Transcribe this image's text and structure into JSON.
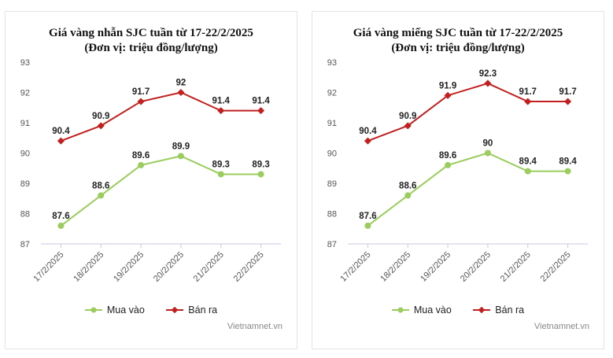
{
  "chart_data": [
    {
      "type": "line",
      "title": "Giá vàng nhẫn SJC tuần từ 17-22/2/2025",
      "subtitle": "(Đơn vị: triệu đồng/lượng)",
      "categories": [
        "17/2/2025",
        "18/2/2025",
        "19/2/2025",
        "20/2/2025",
        "21/2/2025",
        "22/2/2025"
      ],
      "series": [
        {
          "name": "Mua vào",
          "values": [
            87.6,
            88.6,
            89.6,
            89.9,
            89.3,
            89.3
          ],
          "color": "#9acd5e"
        },
        {
          "name": "Bán ra",
          "values": [
            90.4,
            90.9,
            91.7,
            92,
            91.4,
            91.4
          ],
          "color": "#c21f1f"
        }
      ],
      "ylim": [
        87,
        93
      ],
      "yticks": [
        87,
        88,
        89,
        90,
        91,
        92,
        93
      ],
      "grid": false,
      "legend": "bottom",
      "credit": "Vietnamnet.vn"
    },
    {
      "type": "line",
      "title": "Giá vàng miếng SJC tuần từ 17-22/2/2025",
      "subtitle": "(Đơn vị: triệu đồng/lượng)",
      "categories": [
        "17/2/2025",
        "18/2/2025",
        "19/2/2025",
        "20/2/2025",
        "21/2/2025",
        "22/2/2025"
      ],
      "series": [
        {
          "name": "Mua vào",
          "values": [
            87.6,
            88.6,
            89.6,
            90,
            89.4,
            89.4
          ],
          "color": "#9acd5e"
        },
        {
          "name": "Bán ra",
          "values": [
            90.4,
            90.9,
            91.9,
            92.3,
            91.7,
            91.7
          ],
          "color": "#c21f1f"
        }
      ],
      "ylim": [
        87,
        93
      ],
      "yticks": [
        87,
        88,
        89,
        90,
        91,
        92,
        93
      ],
      "grid": false,
      "legend": "bottom",
      "credit": "Vietnamnet.vn"
    }
  ]
}
